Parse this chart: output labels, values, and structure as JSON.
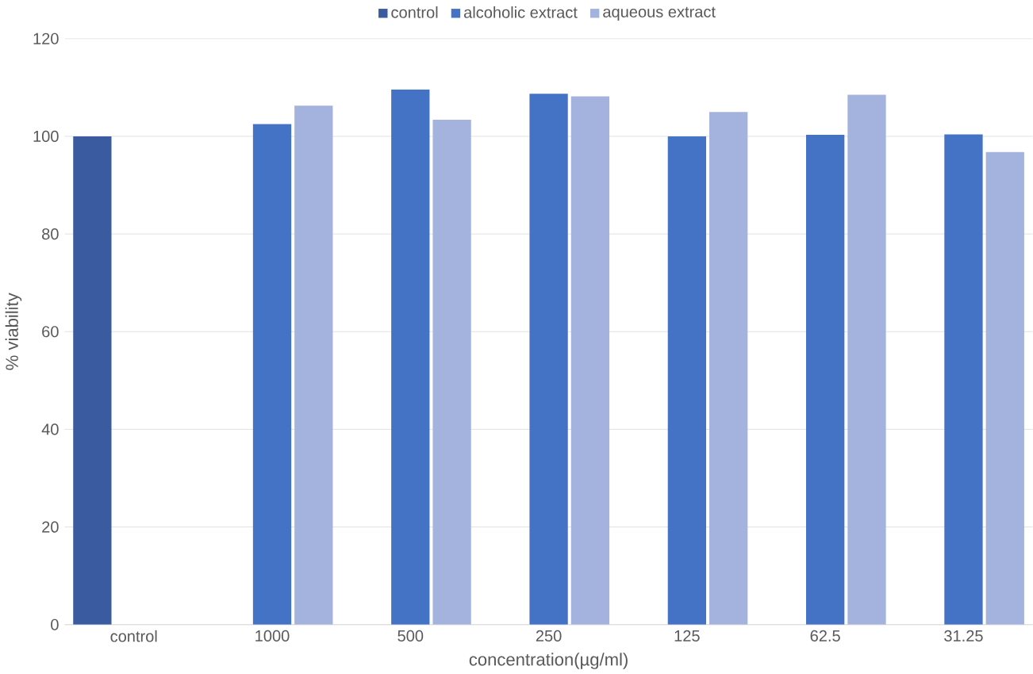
{
  "chart_data": {
    "type": "bar",
    "xlabel": "concentration(µg/ml)",
    "ylabel": "% viability",
    "categories": [
      "control",
      "1000",
      "500",
      "250",
      "125",
      "62.5",
      "31.25"
    ],
    "series": [
      {
        "name": "control",
        "color": "#3a5ba0",
        "values": [
          100,
          null,
          null,
          null,
          null,
          null,
          null
        ]
      },
      {
        "name": "alcoholic extract",
        "color": "#4472c4",
        "values": [
          null,
          102.5,
          109.6,
          108.7,
          100,
          100.3,
          100.4
        ]
      },
      {
        "name": "aqueous extract",
        "color": "#a3b3de",
        "values": [
          null,
          106.3,
          103.4,
          108.2,
          105,
          108.5,
          96.8
        ]
      }
    ],
    "ylim": [
      0,
      120
    ],
    "yticks": [
      0,
      20,
      40,
      60,
      80,
      100,
      120
    ],
    "grid": "y",
    "legend": "top"
  }
}
